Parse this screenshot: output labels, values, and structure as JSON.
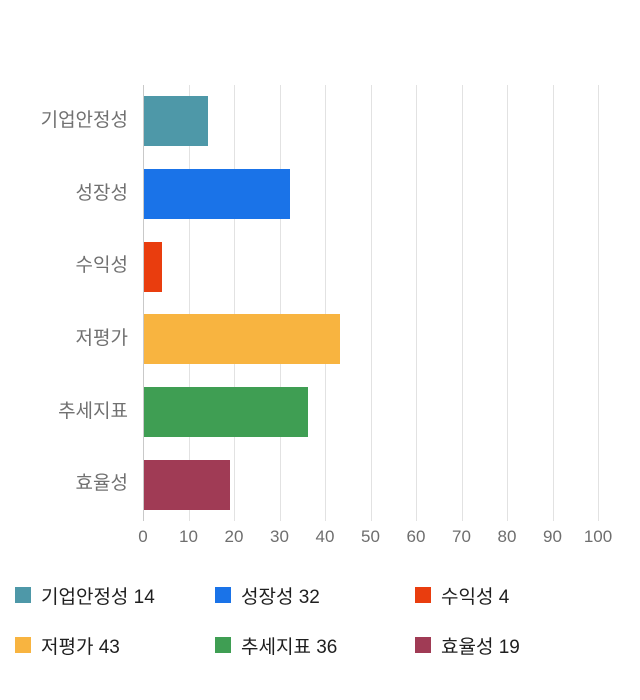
{
  "chart_data": {
    "type": "bar",
    "orientation": "horizontal",
    "title": "",
    "xlabel": "",
    "ylabel": "",
    "xlim": [
      0,
      100
    ],
    "x_ticks": [
      0,
      10,
      20,
      30,
      40,
      50,
      60,
      70,
      80,
      90,
      100
    ],
    "grid": true,
    "legend_position": "bottom",
    "categories": [
      "기업안정성",
      "성장성",
      "수익성",
      "저평가",
      "추세지표",
      "효율성"
    ],
    "values": [
      14,
      32,
      4,
      43,
      36,
      19
    ],
    "colors": [
      "#4e98a8",
      "#1a73e8",
      "#e93d0e",
      "#f8b440",
      "#3f9e53",
      "#a03b55"
    ],
    "legend": [
      {
        "label": "기업안정성 14",
        "color": "#4e98a8"
      },
      {
        "label": "성장성 32",
        "color": "#1a73e8"
      },
      {
        "label": "수익성 4",
        "color": "#e93d0e"
      },
      {
        "label": "저평가 43",
        "color": "#f8b440"
      },
      {
        "label": "추세지표 36",
        "color": "#3f9e53"
      },
      {
        "label": "효율성 19",
        "color": "#a03b55"
      }
    ]
  }
}
